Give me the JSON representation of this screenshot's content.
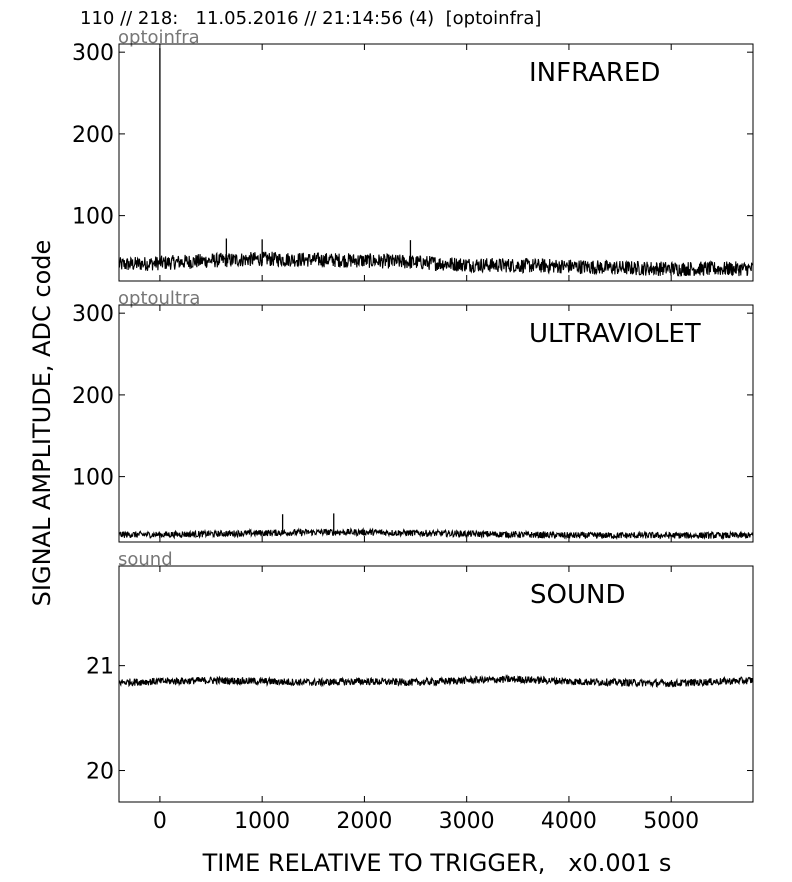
{
  "title": "110 // 218:   11.05.2016 // 21:14:56 (4)  [optoinfra]",
  "ylabel": "SIGNAL AMPLITUDE,  ADC code",
  "xlabel": "TIME RELATIVE TO TRIGGER,   x0.001 s",
  "chart_data": [
    {
      "type": "line",
      "panel_name": "optoinfra",
      "annotation": "INFRARED",
      "xlim": [
        -400,
        5800
      ],
      "ylim": [
        20,
        310
      ],
      "x_ticks": [
        0,
        1000,
        2000,
        3000,
        4000,
        5000
      ],
      "y_ticks": [
        100,
        200,
        300
      ],
      "grid": false,
      "x": [
        -400,
        0,
        500,
        1000,
        1500,
        2000,
        2500,
        3000,
        3500,
        4000,
        4500,
        5000,
        5500,
        5800
      ],
      "y": [
        40,
        42,
        45,
        47,
        46,
        45,
        43,
        40,
        39,
        38,
        36,
        35,
        35,
        35
      ],
      "noise_band": 9,
      "spikes": [
        {
          "x": 0,
          "y": 305
        },
        {
          "x": 650,
          "y": 72
        },
        {
          "x": 1000,
          "y": 71
        },
        {
          "x": 2450,
          "y": 70
        }
      ]
    },
    {
      "type": "line",
      "panel_name": "optoultra",
      "annotation": "ULTRAVIOLET",
      "xlim": [
        -400,
        5800
      ],
      "ylim": [
        20,
        310
      ],
      "x_ticks": [
        0,
        1000,
        2000,
        3000,
        4000,
        5000
      ],
      "y_ticks": [
        100,
        200,
        300
      ],
      "grid": false,
      "x": [
        -400,
        0,
        500,
        1000,
        1500,
        2000,
        2500,
        3000,
        3500,
        4000,
        4500,
        5000,
        5500,
        5800
      ],
      "y": [
        29,
        29,
        30,
        31,
        32,
        32,
        31,
        30,
        29,
        28,
        28,
        28,
        28,
        28
      ],
      "noise_band": 4,
      "spikes": [
        {
          "x": 1200,
          "y": 54
        },
        {
          "x": 1700,
          "y": 55
        }
      ]
    },
    {
      "type": "line",
      "panel_name": "sound",
      "annotation": "SOUND",
      "xlim": [
        -400,
        5800
      ],
      "ylim": [
        19.7,
        21.95
      ],
      "x_ticks": [
        0,
        1000,
        2000,
        3000,
        4000,
        5000
      ],
      "x_tick_labels": [
        "0",
        "1000",
        "2000",
        "3000",
        "4000",
        "5000"
      ],
      "y_ticks": [
        20,
        21
      ],
      "grid": false,
      "x": [
        -400,
        0,
        500,
        1000,
        1500,
        2000,
        2500,
        3000,
        3500,
        4000,
        4500,
        5000,
        5500,
        5800
      ],
      "y": [
        20.84,
        20.85,
        20.86,
        20.85,
        20.84,
        20.85,
        20.84,
        20.86,
        20.87,
        20.85,
        20.84,
        20.83,
        20.85,
        20.86
      ],
      "noise_band": 0.035,
      "spikes": []
    }
  ]
}
